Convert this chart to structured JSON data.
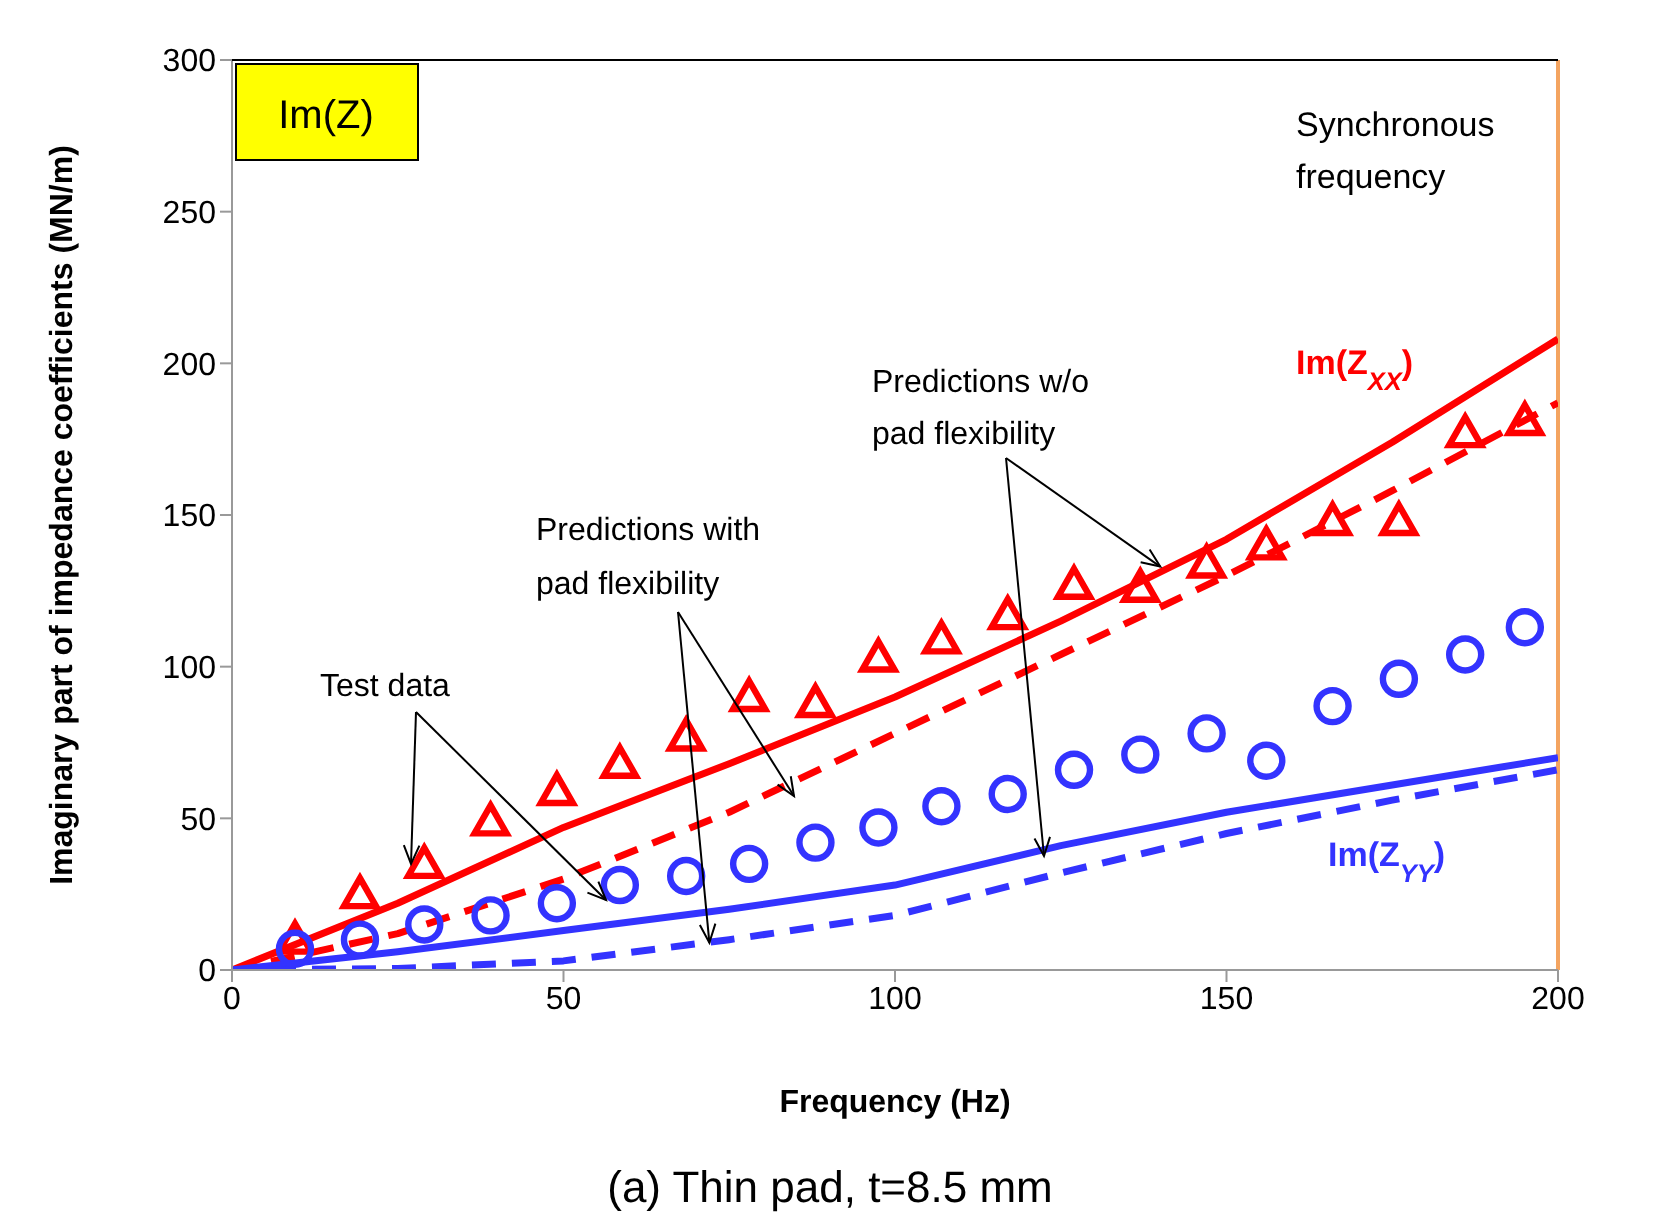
{
  "chart_data": {
    "type": "scatter",
    "title": "Im(Z)",
    "xlabel": "Frequency (Hz)",
    "ylabel": "Imaginary part of impedance coefficients (MN/m)",
    "xlim": [
      0,
      200
    ],
    "xticks": [
      0,
      50,
      100,
      150,
      200
    ],
    "ylim": [
      0,
      300
    ],
    "yticks": [
      0,
      50,
      100,
      150,
      200,
      250,
      300
    ],
    "annotations": [
      {
        "text": "Test data",
        "x": 27,
        "y": 35
      },
      {
        "text": "Predictions with\npad flexibility",
        "x": 72,
        "y": 9
      },
      {
        "text": "Predictions w/o\npad flexibility",
        "x": 140,
        "y": 133
      },
      "Im(Z$_{XX}$)",
      "Im(Z$_{YY}$)",
      "(a) Thin pad, t=8.5 mm"
    ],
    "ref_lines": [
      {
        "axis": "x",
        "value": 200,
        "label": "Synchronous\nfrequency",
        "color": "#f4a460"
      }
    ],
    "series": [
      {
        "marker": "triangle",
        "color": "#ff0000",
        "x": [
          9.5,
          19.3,
          29,
          39,
          49,
          58.5,
          68.5,
          78,
          88,
          97.5,
          107,
          117,
          127,
          137,
          147,
          156,
          166,
          176,
          186,
          195
        ],
        "values": [
          10,
          25,
          35,
          49,
          59,
          68,
          77,
          90,
          88,
          103,
          109,
          117,
          127,
          126,
          134,
          140,
          148,
          148,
          177,
          181
        ]
      },
      {
        "marker": "circle",
        "color": "#3333ff",
        "x": [
          9.5,
          19.3,
          29,
          39,
          49,
          58.5,
          68.5,
          78,
          88,
          97.5,
          107,
          117,
          127,
          137,
          147,
          156,
          166,
          176,
          186,
          195
        ],
        "values": [
          7,
          10,
          15,
          18,
          22,
          28,
          31,
          35,
          42,
          47,
          54,
          58,
          66,
          71,
          78,
          69,
          87,
          96,
          104,
          113
        ]
      },
      {
        "type": "line",
        "line_style": "solid",
        "color": "#ff0000",
        "x": [
          0,
          25,
          50,
          75,
          100,
          125,
          150,
          175,
          200
        ],
        "values": [
          0,
          22,
          47,
          68,
          90,
          115,
          142,
          174,
          208
        ]
      },
      {
        "type": "line",
        "line_style": "dashed",
        "color": "#ff0000",
        "x": [
          0,
          25,
          50,
          75,
          100,
          125,
          150,
          175,
          200
        ],
        "values": [
          0,
          12,
          30,
          52,
          78,
          104,
          130,
          158,
          187
        ]
      },
      {
        "type": "line",
        "line_style": "solid",
        "color": "#3333ff",
        "x": [
          0,
          25,
          50,
          75,
          100,
          125,
          150,
          175,
          200
        ],
        "values": [
          0,
          6,
          13,
          20,
          28,
          41,
          52,
          61,
          70
        ]
      },
      {
        "type": "line",
        "line_style": "dashed",
        "color": "#3333ff",
        "x": [
          0,
          25,
          50,
          75,
          100,
          125,
          150,
          175,
          200
        ],
        "values": [
          0,
          0.5,
          3,
          10,
          18,
          32,
          45,
          56,
          66
        ]
      }
    ]
  }
}
